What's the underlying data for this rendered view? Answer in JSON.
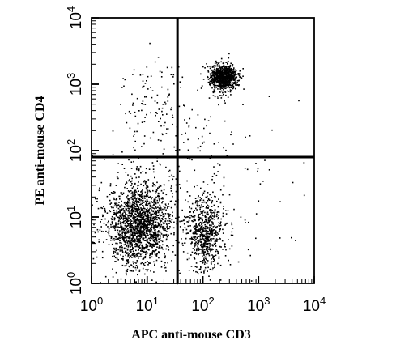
{
  "chart_data": {
    "type": "scatter",
    "title": "",
    "xlabel": "APC anti-mouse CD3",
    "ylabel": "PE anti-mouse CD4",
    "x_scale": "log",
    "y_scale": "log",
    "xlim": [
      1,
      10000
    ],
    "ylim": [
      1,
      10000
    ],
    "grid": false,
    "x_ticks": [
      {
        "base": "10",
        "exp": "0"
      },
      {
        "base": "10",
        "exp": "1"
      },
      {
        "base": "10",
        "exp": "2"
      },
      {
        "base": "10",
        "exp": "3"
      },
      {
        "base": "10",
        "exp": "4"
      }
    ],
    "y_ticks": [
      {
        "base": "10",
        "exp": "0"
      },
      {
        "base": "10",
        "exp": "1"
      },
      {
        "base": "10",
        "exp": "2"
      },
      {
        "base": "10",
        "exp": "3"
      },
      {
        "base": "10",
        "exp": "4"
      }
    ],
    "quadrant_gates": {
      "x": 35,
      "y": 80
    },
    "populations": [
      {
        "description": "CD3- CD4- (lower left)",
        "center": [
          7,
          8
        ],
        "spread_decades": [
          0.28,
          0.32
        ],
        "events": 1800
      },
      {
        "description": "CD3+ CD4- (lower right)",
        "center": [
          110,
          6
        ],
        "spread_decades": [
          0.17,
          0.26
        ],
        "events": 650
      },
      {
        "description": "CD3+ CD4+ (upper right)",
        "center": [
          230,
          1300
        ],
        "spread_decades": [
          0.12,
          0.1
        ],
        "events": 900
      },
      {
        "description": "sparse upper-left events",
        "center": [
          15,
          450
        ],
        "spread_decades": [
          0.4,
          0.38
        ],
        "events": 130
      },
      {
        "description": "sparse background",
        "center": [
          60,
          30
        ],
        "spread_decades": [
          0.8,
          0.7
        ],
        "events": 220
      }
    ],
    "point_color": "#000000"
  }
}
